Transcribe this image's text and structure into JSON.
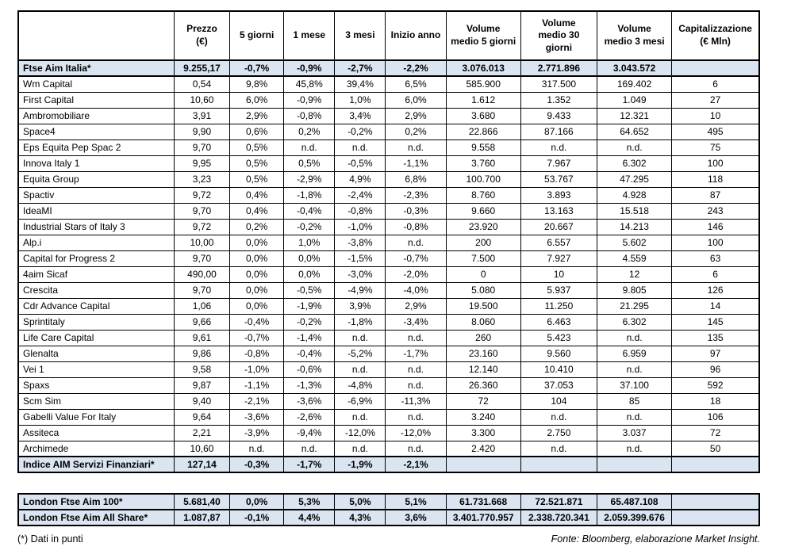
{
  "colors": {
    "highlight_row_bg": "#dbe5f1",
    "border": "#000000",
    "text": "#000000"
  },
  "main_table": {
    "headers": [
      "",
      "Prezzo\n(€)",
      "5 giorni",
      "1 mese",
      "3 mesi",
      "Inizio anno",
      "Volume\nmedio 5 giorni",
      "Volume\nmedio 30\ngiorni",
      "Volume\nmedio 3 mesi",
      "Capitalizzazione\n(€ Mln)"
    ],
    "rows": [
      {
        "name": "Ftse Aim Italia*",
        "highlight": true,
        "cells": [
          "9.255,17",
          "-0,7%",
          "-0,9%",
          "-2,7%",
          "-2,2%",
          "3.076.013",
          "2.771.896",
          "3.043.572",
          ""
        ]
      },
      {
        "name": "Wm Capital",
        "highlight": false,
        "cells": [
          "0,54",
          "9,8%",
          "45,8%",
          "39,4%",
          "6,5%",
          "585.900",
          "317.500",
          "169.402",
          "6"
        ]
      },
      {
        "name": "First Capital",
        "highlight": false,
        "cells": [
          "10,60",
          "6,0%",
          "-0,9%",
          "1,0%",
          "6,0%",
          "1.612",
          "1.352",
          "1.049",
          "27"
        ]
      },
      {
        "name": "Ambromobiliare",
        "highlight": false,
        "cells": [
          "3,91",
          "2,9%",
          "-0,8%",
          "3,4%",
          "2,9%",
          "3.680",
          "9.433",
          "12.321",
          "10"
        ]
      },
      {
        "name": "Space4",
        "highlight": false,
        "cells": [
          "9,90",
          "0,6%",
          "0,2%",
          "-0,2%",
          "0,2%",
          "22.866",
          "87.166",
          "64.652",
          "495"
        ]
      },
      {
        "name": "Eps Equita Pep Spac 2",
        "highlight": false,
        "cells": [
          "9,70",
          "0,5%",
          "n.d.",
          "n.d.",
          "n.d.",
          "9.558",
          "n.d.",
          "n.d.",
          "75"
        ]
      },
      {
        "name": "Innova Italy 1",
        "highlight": false,
        "cells": [
          "9,95",
          "0,5%",
          "0,5%",
          "-0,5%",
          "-1,1%",
          "3.760",
          "7.967",
          "6.302",
          "100"
        ]
      },
      {
        "name": "Equita Group",
        "highlight": false,
        "cells": [
          "3,23",
          "0,5%",
          "-2,9%",
          "4,9%",
          "6,8%",
          "100.700",
          "53.767",
          "47.295",
          "118"
        ]
      },
      {
        "name": "Spactiv",
        "highlight": false,
        "cells": [
          "9,72",
          "0,4%",
          "-1,8%",
          "-2,4%",
          "-2,3%",
          "8.760",
          "3.893",
          "4.928",
          "87"
        ]
      },
      {
        "name": "IdeaMI",
        "highlight": false,
        "cells": [
          "9,70",
          "0,4%",
          "-0,4%",
          "-0,8%",
          "-0,3%",
          "9.660",
          "13.163",
          "15.518",
          "243"
        ]
      },
      {
        "name": "Industrial Stars of Italy 3",
        "highlight": false,
        "cells": [
          "9,72",
          "0,2%",
          "-0,2%",
          "-1,0%",
          "-0,8%",
          "23.920",
          "20.667",
          "14.213",
          "146"
        ]
      },
      {
        "name": "Alp.i",
        "highlight": false,
        "cells": [
          "10,00",
          "0,0%",
          "1,0%",
          "-3,8%",
          "n.d.",
          "200",
          "6.557",
          "5.602",
          "100"
        ]
      },
      {
        "name": "Capital for Progress 2",
        "highlight": false,
        "cells": [
          "9,70",
          "0,0%",
          "0,0%",
          "-1,5%",
          "-0,7%",
          "7.500",
          "7.927",
          "4.559",
          "63"
        ]
      },
      {
        "name": "4aim Sicaf",
        "highlight": false,
        "cells": [
          "490,00",
          "0,0%",
          "0,0%",
          "-3,0%",
          "-2,0%",
          "0",
          "10",
          "12",
          "6"
        ]
      },
      {
        "name": "Crescita",
        "highlight": false,
        "cells": [
          "9,70",
          "0,0%",
          "-0,5%",
          "-4,9%",
          "-4,0%",
          "5.080",
          "5.937",
          "9.805",
          "126"
        ]
      },
      {
        "name": "Cdr Advance Capital",
        "highlight": false,
        "cells": [
          "1,06",
          "0,0%",
          "-1,9%",
          "3,9%",
          "2,9%",
          "19.500",
          "11.250",
          "21.295",
          "14"
        ]
      },
      {
        "name": "Sprintitaly",
        "highlight": false,
        "cells": [
          "9,66",
          "-0,4%",
          "-0,2%",
          "-1,8%",
          "-3,4%",
          "8.060",
          "6.463",
          "6.302",
          "145"
        ]
      },
      {
        "name": "Life Care Capital",
        "highlight": false,
        "cells": [
          "9,61",
          "-0,7%",
          "-1,4%",
          "n.d.",
          "n.d.",
          "260",
          "5.423",
          "n.d.",
          "135"
        ]
      },
      {
        "name": "Glenalta",
        "highlight": false,
        "cells": [
          "9,86",
          "-0,8%",
          "-0,4%",
          "-5,2%",
          "-1,7%",
          "23.160",
          "9.560",
          "6.959",
          "97"
        ]
      },
      {
        "name": "Vei 1",
        "highlight": false,
        "cells": [
          "9,58",
          "-1,0%",
          "-0,6%",
          "n.d.",
          "n.d.",
          "12.140",
          "10.410",
          "n.d.",
          "96"
        ]
      },
      {
        "name": "Spaxs",
        "highlight": false,
        "cells": [
          "9,87",
          "-1,1%",
          "-1,3%",
          "-4,8%",
          "n.d.",
          "26.360",
          "37.053",
          "37.100",
          "592"
        ]
      },
      {
        "name": "Scm Sim",
        "highlight": false,
        "cells": [
          "9,40",
          "-2,1%",
          "-3,6%",
          "-6,9%",
          "-11,3%",
          "72",
          "104",
          "85",
          "18"
        ]
      },
      {
        "name": "Gabelli Value For Italy",
        "highlight": false,
        "cells": [
          "9,64",
          "-3,6%",
          "-2,6%",
          "n.d.",
          "n.d.",
          "3.240",
          "n.d.",
          "n.d.",
          "106"
        ]
      },
      {
        "name": "Assiteca",
        "highlight": false,
        "cells": [
          "2,21",
          "-3,9%",
          "-9,4%",
          "-12,0%",
          "-12,0%",
          "3.300",
          "2.750",
          "3.037",
          "72"
        ]
      },
      {
        "name": "Archimede",
        "highlight": false,
        "cells": [
          "10,60",
          "n.d.",
          "n.d.",
          "n.d.",
          "n.d.",
          "2.420",
          "n.d.",
          "n.d.",
          "50"
        ]
      },
      {
        "name": "Indice AIM Servizi Finanziari*",
        "highlight": true,
        "cells": [
          "127,14",
          "-0,3%",
          "-1,7%",
          "-1,9%",
          "-2,1%",
          "",
          "",
          "",
          ""
        ]
      }
    ]
  },
  "london_table": {
    "rows": [
      {
        "name": "London Ftse Aim 100*",
        "highlight": true,
        "cells": [
          "5.681,40",
          "0,0%",
          "5,3%",
          "5,0%",
          "5,1%",
          "61.731.668",
          "72.521.871",
          "65.487.108",
          ""
        ]
      },
      {
        "name": "London Ftse Aim All Share*",
        "highlight": true,
        "cells": [
          "1.087,87",
          "-0,1%",
          "4,4%",
          "4,3%",
          "3,6%",
          "3.401.770.957",
          "2.338.720.341",
          "2.059.399.676",
          ""
        ]
      }
    ]
  },
  "footer": {
    "note": "(*) Dati in punti",
    "source": "Fonte: Bloomberg, elaborazione Market Insight."
  }
}
